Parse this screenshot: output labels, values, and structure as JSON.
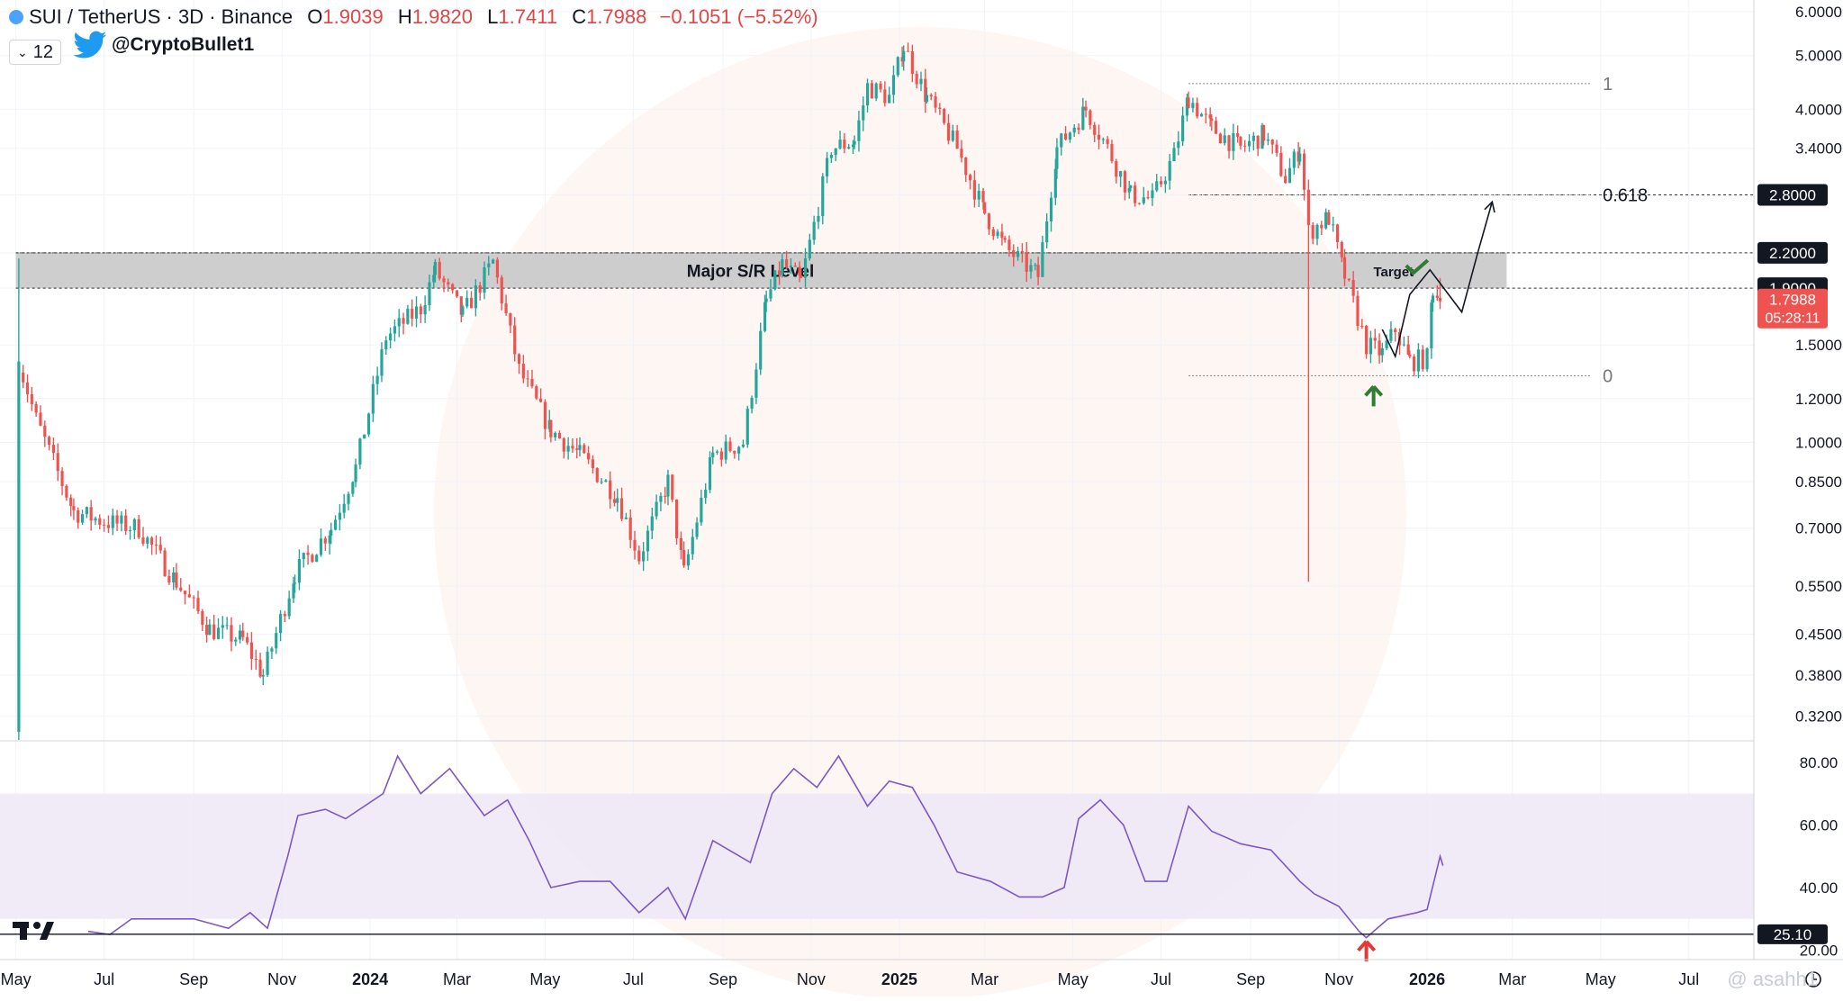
{
  "header": {
    "symbol": "SUI / TetherUS · 3D · Binance",
    "open_label": "O",
    "open": "1.9039",
    "high_label": "H",
    "high": "1.9820",
    "low_label": "L",
    "low": "1.7411",
    "close_label": "C",
    "close": "1.7988",
    "change": "−0.1051 (−5.52%)",
    "interval": "12",
    "handle": "@CryptoBullet1"
  },
  "colors": {
    "up": "#26a69a",
    "down": "#ef5350",
    "rsi": "#7e57c2",
    "band": "#ede7f6",
    "zone": "#c9c9c9"
  },
  "chart_data": {
    "type": "candlestick",
    "title": "",
    "price_scale": "log",
    "ylim": [
      0.29,
      6.3
    ],
    "price_ticks": [
      "6.0000",
      "5.0000",
      "4.0000",
      "3.4000",
      "2.8000",
      "2.2000",
      "1.9000",
      "1.5000",
      "1.2000",
      "1.0000",
      "0.8500",
      "0.7000",
      "0.5500",
      "0.4500",
      "0.3800",
      "0.3200"
    ],
    "price_tick_values": [
      6.0,
      5.0,
      4.0,
      3.4,
      2.8,
      2.2,
      1.9,
      1.5,
      1.2,
      1.0,
      0.85,
      0.7,
      0.55,
      0.45,
      0.38,
      0.32
    ],
    "x_ticks": [
      "May",
      "Jul",
      "Sep",
      "Nov",
      "2024",
      "Mar",
      "May",
      "Jul",
      "Sep",
      "Nov",
      "2025",
      "Mar",
      "May",
      "Jul",
      "Sep",
      "Nov",
      "2026",
      "Mar",
      "May",
      "Jul"
    ],
    "x_tick_dates": [
      "2023-05-01",
      "2023-07-01",
      "2023-09-01",
      "2023-11-01",
      "2024-01-01",
      "2024-03-01",
      "2024-05-01",
      "2024-07-01",
      "2024-09-01",
      "2024-11-01",
      "2025-01-01",
      "2025-03-01",
      "2025-05-01",
      "2025-07-01",
      "2025-09-01",
      "2025-11-01",
      "2026-01-01",
      "2026-03-01",
      "2026-05-01",
      "2026-07-01"
    ],
    "bold_x_ticks": [
      "2024",
      "2025",
      "2026"
    ],
    "x_range": [
      "2023-04-20",
      "2026-08-15"
    ],
    "price_path": [
      [
        "2023-05-03",
        1.4
      ],
      [
        "2023-05-15",
        1.1
      ],
      [
        "2023-06-10",
        0.75
      ],
      [
        "2023-07-01",
        0.72
      ],
      [
        "2023-07-25",
        0.7
      ],
      [
        "2023-08-20",
        0.56
      ],
      [
        "2023-09-12",
        0.46
      ],
      [
        "2023-10-05",
        0.44
      ],
      [
        "2023-10-19",
        0.38
      ],
      [
        "2023-11-10",
        0.58
      ],
      [
        "2023-12-05",
        0.7
      ],
      [
        "2023-12-22",
        0.9
      ],
      [
        "2024-01-12",
        1.55
      ],
      [
        "2024-02-05",
        1.75
      ],
      [
        "2024-02-15",
        2.05
      ],
      [
        "2024-03-05",
        1.7
      ],
      [
        "2024-03-26",
        2.12
      ],
      [
        "2024-04-13",
        1.35
      ],
      [
        "2024-05-05",
        1.05
      ],
      [
        "2024-05-25",
        0.95
      ],
      [
        "2024-06-20",
        0.8
      ],
      [
        "2024-07-05",
        0.62
      ],
      [
        "2024-07-25",
        0.85
      ],
      [
        "2024-08-05",
        0.58
      ],
      [
        "2024-08-25",
        0.95
      ],
      [
        "2024-09-15",
        1.0
      ],
      [
        "2024-10-01",
        1.8
      ],
      [
        "2024-10-12",
        2.1
      ],
      [
        "2024-10-25",
        1.95
      ],
      [
        "2024-11-15",
        3.4
      ],
      [
        "2024-12-01",
        3.5
      ],
      [
        "2024-12-10",
        4.4
      ],
      [
        "2024-12-25",
        4.2
      ],
      [
        "2025-01-04",
        5.2
      ],
      [
        "2025-01-20",
        4.2
      ],
      [
        "2025-02-10",
        3.4
      ],
      [
        "2025-03-01",
        2.6
      ],
      [
        "2025-03-15",
        2.25
      ],
      [
        "2025-04-07",
        2.0
      ],
      [
        "2025-04-20",
        3.4
      ],
      [
        "2025-05-10",
        4.0
      ],
      [
        "2025-05-25",
        3.4
      ],
      [
        "2025-06-10",
        2.8
      ],
      [
        "2025-06-25",
        2.75
      ],
      [
        "2025-07-10",
        3.3
      ],
      [
        "2025-07-20",
        4.2
      ],
      [
        "2025-08-05",
        3.7
      ],
      [
        "2025-08-25",
        3.4
      ],
      [
        "2025-09-10",
        3.6
      ],
      [
        "2025-09-25",
        3.0
      ],
      [
        "2025-10-05",
        3.4
      ],
      [
        "2025-10-11",
        2.4
      ],
      [
        "2025-10-25",
        2.55
      ],
      [
        "2025-11-05",
        2.0
      ],
      [
        "2025-11-20",
        1.5
      ],
      [
        "2025-12-01",
        1.45
      ],
      [
        "2025-12-10",
        1.6
      ],
      [
        "2025-12-20",
        1.4
      ],
      [
        "2026-01-01",
        1.42
      ],
      [
        "2026-01-05",
        1.9
      ],
      [
        "2026-01-10",
        1.8
      ]
    ],
    "rsi": {
      "ylim": [
        17,
        86
      ],
      "ticks": [
        "80.00",
        "60.00",
        "40.00",
        "20.00"
      ],
      "tick_values": [
        80,
        60,
        40,
        20
      ],
      "band": [
        30,
        70
      ],
      "marked_level": "25.10",
      "marked_value": 25.1,
      "path": [
        [
          "2023-06-20",
          26
        ],
        [
          "2023-07-05",
          25
        ],
        [
          "2023-07-20",
          30
        ],
        [
          "2023-08-10",
          30
        ],
        [
          "2023-09-01",
          30
        ],
        [
          "2023-09-25",
          27
        ],
        [
          "2023-10-10",
          32
        ],
        [
          "2023-10-22",
          27
        ],
        [
          "2023-11-05",
          50
        ],
        [
          "2023-11-12",
          63
        ],
        [
          "2023-12-01",
          65
        ],
        [
          "2023-12-15",
          62
        ],
        [
          "2024-01-10",
          70
        ],
        [
          "2024-01-20",
          82
        ],
        [
          "2024-02-05",
          70
        ],
        [
          "2024-02-25",
          78
        ],
        [
          "2024-03-20",
          63
        ],
        [
          "2024-04-05",
          68
        ],
        [
          "2024-04-20",
          55
        ],
        [
          "2024-05-05",
          40
        ],
        [
          "2024-05-25",
          42
        ],
        [
          "2024-06-15",
          42
        ],
        [
          "2024-07-05",
          32
        ],
        [
          "2024-07-25",
          40
        ],
        [
          "2024-08-06",
          30
        ],
        [
          "2024-08-25",
          55
        ],
        [
          "2024-09-20",
          48
        ],
        [
          "2024-10-05",
          70
        ],
        [
          "2024-10-20",
          78
        ],
        [
          "2024-11-05",
          72
        ],
        [
          "2024-11-20",
          82
        ],
        [
          "2024-12-10",
          66
        ],
        [
          "2024-12-25",
          74
        ],
        [
          "2025-01-10",
          72
        ],
        [
          "2025-01-25",
          60
        ],
        [
          "2025-02-10",
          45
        ],
        [
          "2025-03-05",
          42
        ],
        [
          "2025-03-25",
          37
        ],
        [
          "2025-04-10",
          37
        ],
        [
          "2025-04-25",
          40
        ],
        [
          "2025-05-05",
          62
        ],
        [
          "2025-05-20",
          68
        ],
        [
          "2025-06-05",
          60
        ],
        [
          "2025-06-20",
          42
        ],
        [
          "2025-07-05",
          42
        ],
        [
          "2025-07-20",
          66
        ],
        [
          "2025-08-05",
          58
        ],
        [
          "2025-08-25",
          54
        ],
        [
          "2025-09-15",
          52
        ],
        [
          "2025-10-05",
          42
        ],
        [
          "2025-10-15",
          38
        ],
        [
          "2025-11-01",
          34
        ],
        [
          "2025-11-15",
          26
        ],
        [
          "2025-11-20",
          24
        ],
        [
          "2025-12-05",
          30
        ],
        [
          "2025-12-25",
          32
        ],
        [
          "2026-01-01",
          33
        ],
        [
          "2026-01-10",
          50
        ],
        [
          "2026-01-12",
          47
        ]
      ]
    },
    "levels": [
      {
        "label": "2.8000",
        "value": 2.8
      },
      {
        "label": "2.2000",
        "value": 2.2
      },
      {
        "label": "1.9000",
        "value": 1.9
      }
    ],
    "current_price": {
      "label": "1.7988",
      "value": 1.7988,
      "countdown": "05:28:11"
    },
    "sr_zone": {
      "label": "Major S/R Level",
      "low": 1.9,
      "high": 2.2,
      "from": "2023-05-01",
      "to": "2026-02-25"
    },
    "fib": [
      {
        "label": "1",
        "value": 4.45
      },
      {
        "label": "0.618",
        "value": 2.8
      },
      {
        "label": "0",
        "value": 1.32
      }
    ],
    "fib_range": {
      "from": "2025-07-20",
      "to": "2026-04-25"
    },
    "annotations": {
      "target": "Target"
    },
    "projection_path": [
      [
        "2025-12-01",
        1.6
      ],
      [
        "2025-12-10",
        1.43
      ],
      [
        "2025-12-20",
        1.85
      ],
      [
        "2026-01-03",
        2.05
      ],
      [
        "2026-01-25",
        1.72
      ],
      [
        "2026-02-05",
        2.2
      ],
      [
        "2026-02-15",
        2.72
      ]
    ]
  },
  "icons": {
    "tv_logo": "tradingview-logo-icon",
    "bird": "twitter-bird-icon",
    "clock": "clock-icon"
  },
  "watermark": "@ asahh1"
}
